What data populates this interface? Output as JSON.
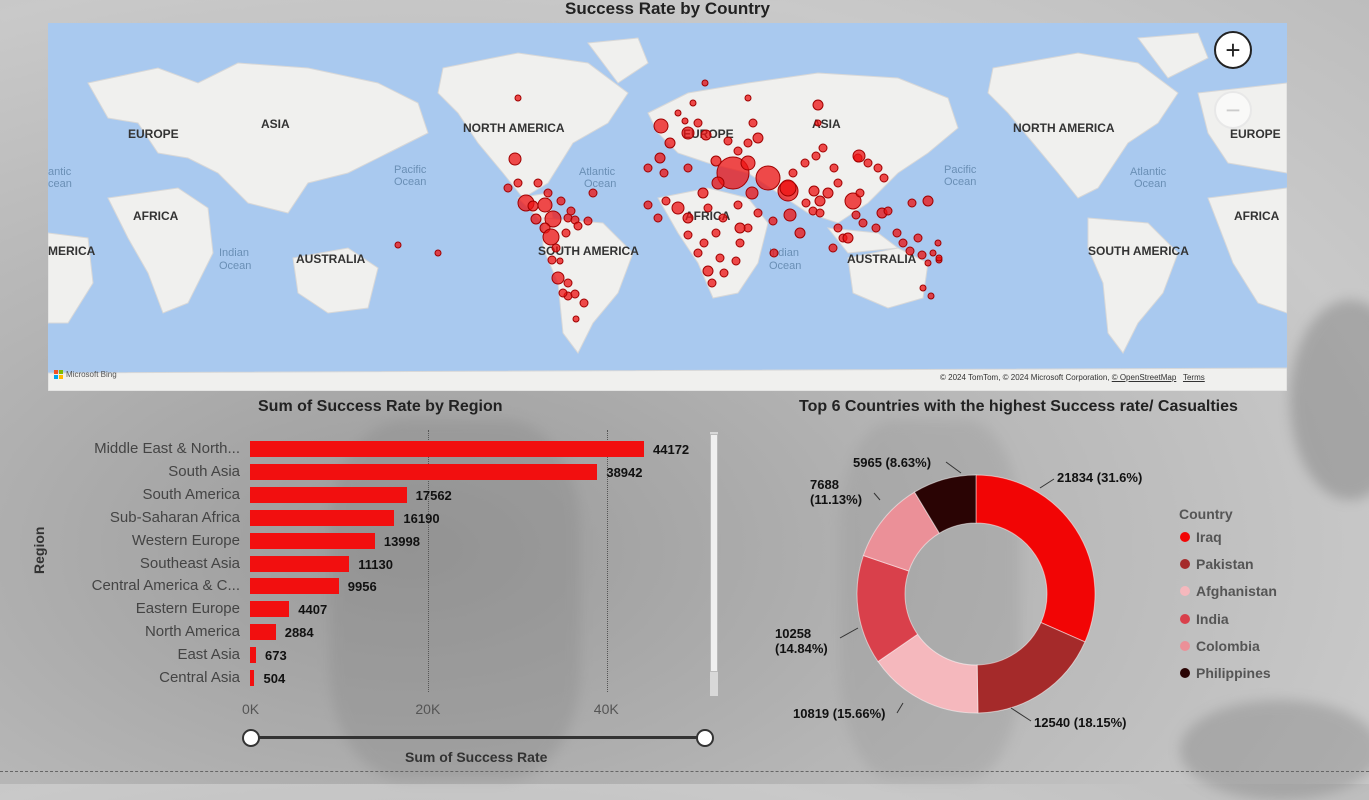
{
  "map": {
    "title": "Success Rate by Country",
    "labels": {
      "europe": "EUROPE",
      "asia": "ASIA",
      "north_america": "NORTH AMERICA",
      "africa": "AFRICA",
      "south_america": "SOUTH AMERICA",
      "australia": "AUSTRALIA",
      "pacific": "Pacific",
      "atlantic": "Atlantic",
      "indian": "Indian",
      "ocean": "Ocean",
      "cut_atlantic": "antic",
      "cut_ocean": "cean",
      "cut_america": "MERICA"
    },
    "attribution_prefix": "© 2024 TomTom, © 2024 Microsoft Corporation, ",
    "attribution_link": "© OpenStreetMap",
    "attribution_terms": "Terms",
    "logo_text": "Microsoft Bing",
    "zoom_in": "+",
    "zoom_out": "−",
    "bubble_color": "#ee1111"
  },
  "bar_chart": {
    "title": "Sum of Success Rate by Region",
    "xlabel": "Sum of Success Rate",
    "ylabel": "Region",
    "ticks": [
      "0K",
      "20K",
      "40K"
    ]
  },
  "donut": {
    "title": "Top 6 Countries with the highest Success rate/ Casualties",
    "legend_title": "Country",
    "labels": [
      {
        "line1": "21834 (31.6%)",
        "line2": ""
      },
      {
        "line1": "12540 (18.15%)",
        "line2": ""
      },
      {
        "line1": "10819 (15.66%)",
        "line2": ""
      },
      {
        "line1": "10258",
        "line2": "(14.84%)"
      },
      {
        "line1": "7688",
        "line2": "(11.13%)"
      },
      {
        "line1": "5965 (8.63%)",
        "line2": ""
      }
    ]
  },
  "chart_data": [
    {
      "type": "bar",
      "orientation": "horizontal",
      "title": "Sum of Success Rate by Region",
      "xlabel": "Sum of Success Rate",
      "ylabel": "Region",
      "categories": [
        "Middle East & North...",
        "South Asia",
        "South America",
        "Sub-Saharan Africa",
        "Western Europe",
        "Southeast Asia",
        "Central America & C...",
        "Eastern Europe",
        "North America",
        "East Asia",
        "Central Asia"
      ],
      "values": [
        44172,
        38942,
        17562,
        16190,
        13998,
        11130,
        9956,
        4407,
        2884,
        673,
        504
      ],
      "xlim": [
        0,
        51000
      ],
      "grid": true,
      "color": "#f20f0f"
    },
    {
      "type": "pie",
      "style": "donut",
      "title": "Top 6 Countries with the highest Success rate/ Casualties",
      "legend_title": "Country",
      "legend_position": "right",
      "categories": [
        "Iraq",
        "Pakistan",
        "Afghanistan",
        "India",
        "Colombia",
        "Philippines"
      ],
      "values": [
        21834,
        12540,
        10819,
        10258,
        7688,
        5965
      ],
      "percent": [
        31.6,
        18.15,
        15.66,
        14.84,
        11.13,
        8.63
      ],
      "colors": [
        "#f20505",
        "#a52a2a",
        "#f5b8bd",
        "#d9404b",
        "#eb9098",
        "#2a0404"
      ]
    }
  ]
}
